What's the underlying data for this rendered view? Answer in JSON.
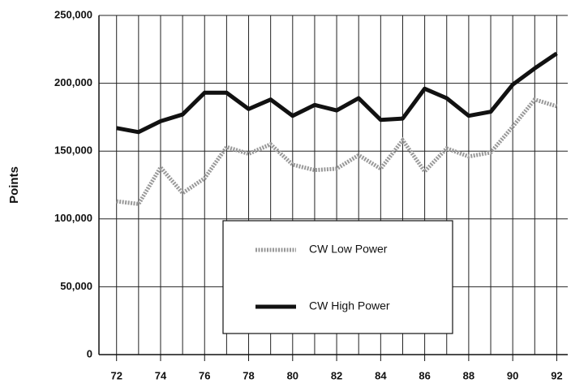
{
  "chart_data": {
    "type": "line",
    "y_label": "Points",
    "x": [
      72,
      73,
      74,
      75,
      76,
      77,
      78,
      79,
      80,
      81,
      82,
      83,
      84,
      85,
      86,
      87,
      88,
      89,
      90,
      91,
      92
    ],
    "series": [
      {
        "name": "CW Low Power",
        "color": "#999999",
        "values": [
          113000,
          111000,
          138000,
          119000,
          130000,
          153000,
          148000,
          155000,
          140000,
          136000,
          137000,
          147000,
          137000,
          158000,
          135000,
          152000,
          146000,
          149000,
          168000,
          188000,
          183000
        ]
      },
      {
        "name": "CW High Power",
        "color": "#111111",
        "values": [
          167000,
          164000,
          172000,
          177000,
          193000,
          193000,
          181000,
          188000,
          176000,
          184000,
          180000,
          189000,
          173000,
          174000,
          196000,
          189000,
          176000,
          179000,
          199000,
          211000,
          222000
        ]
      }
    ],
    "xlim": [
      71.2,
      92.5
    ],
    "xticks": [
      72,
      74,
      76,
      78,
      80,
      82,
      84,
      86,
      88,
      90,
      92
    ],
    "ylim": [
      0,
      250000
    ],
    "yticks": [
      0,
      {
        "value": 50000,
        "label": "50,000"
      },
      {
        "value": 100000,
        "label": "100,000"
      },
      {
        "value": 150000,
        "label": "150,000"
      },
      {
        "value": 200000,
        "label": "200,000"
      },
      {
        "value": 250000,
        "label": "250,000"
      }
    ],
    "grid": true
  }
}
